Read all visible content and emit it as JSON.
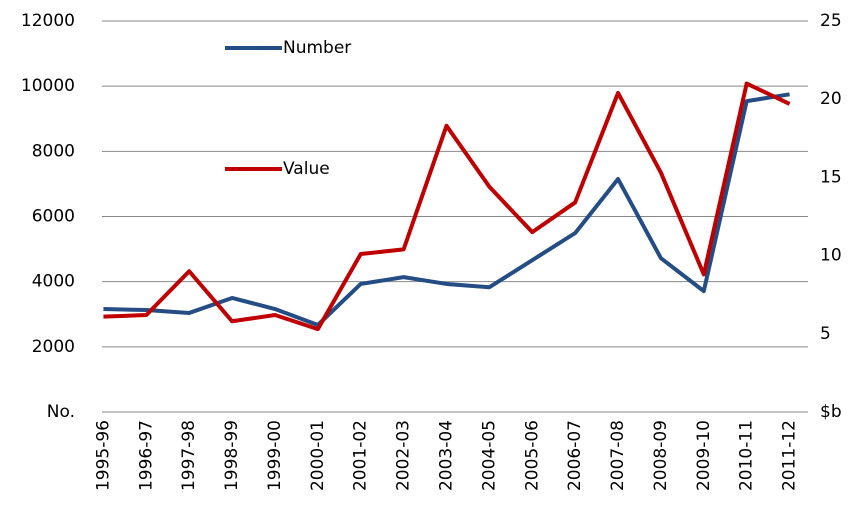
{
  "chart_data": {
    "type": "line",
    "categories": [
      "1995-96",
      "1996-97",
      "1997-98",
      "1998-99",
      "1999-00",
      "2000-01",
      "2001-02",
      "2002-03",
      "2003-04",
      "2004-05",
      "2005-06",
      "2006-07",
      "2007-08",
      "2008-09",
      "2009-10",
      "2010-11",
      "2011-12"
    ],
    "series": [
      {
        "name": "Number",
        "color": "#254d85",
        "values": [
          3160,
          3130,
          3040,
          3500,
          3160,
          2670,
          3930,
          4140,
          3930,
          3830,
          4660,
          5490,
          7150,
          4720,
          3710,
          9540,
          9750
        ]
      },
      {
        "name": "Value",
        "color": "#c00000",
        "axis": "y2",
        "values": [
          6.1,
          6.2,
          9.0,
          5.8,
          6.2,
          5.3,
          10.1,
          10.4,
          18.3,
          14.4,
          11.5,
          13.4,
          20.4,
          15.3,
          8.8,
          21.0,
          19.7
        ]
      }
    ],
    "ylim": [
      0,
      12000
    ],
    "yticks": [
      {
        "value": 0,
        "label": "No."
      },
      2000,
      4000,
      6000,
      8000,
      10000,
      12000
    ],
    "y2lim": [
      0,
      25
    ],
    "y2ticks": [
      {
        "value": 0,
        "label": "$b"
      },
      5,
      10,
      15,
      20,
      25
    ],
    "grid": true
  }
}
